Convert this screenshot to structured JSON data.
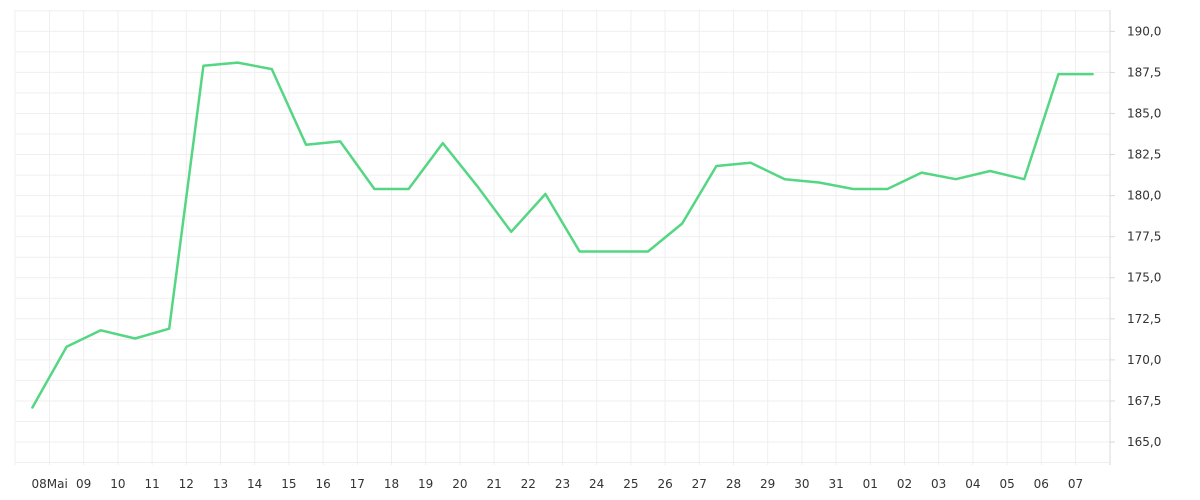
{
  "chart_data": {
    "type": "line",
    "title": "",
    "xlabel": "",
    "ylabel": "",
    "x_tick_labels": [
      "08Mai",
      "09",
      "10",
      "11",
      "12",
      "13",
      "14",
      "15",
      "16",
      "17",
      "18",
      "19",
      "20",
      "21",
      "22",
      "23",
      "24",
      "25",
      "26",
      "27",
      "28",
      "29",
      "30",
      "31",
      "01",
      "02",
      "03",
      "04",
      "05",
      "06",
      "07"
    ],
    "y_ticks": [
      165.0,
      167.5,
      170.0,
      172.5,
      175.0,
      177.5,
      180.0,
      182.5,
      185.0,
      187.5,
      190.0
    ],
    "y_tick_labels": [
      "165,0",
      "167,5",
      "170,0",
      "172,5",
      "175,0",
      "177,5",
      "180,0",
      "182,5",
      "185,0",
      "187,5",
      "190,0"
    ],
    "ylim": [
      163.6,
      191.3
    ],
    "grid": true,
    "legend": "none",
    "color": "#54d683",
    "series": [
      {
        "values": [
          167.1,
          170.8,
          171.8,
          171.3,
          171.9,
          187.9,
          188.1,
          187.7,
          183.1,
          183.3,
          180.4,
          180.4,
          183.2,
          180.6,
          177.8,
          180.1,
          176.6,
          176.6,
          176.6,
          178.3,
          181.8,
          182.0,
          181.0,
          180.8,
          180.4,
          180.4,
          181.4,
          181.0,
          181.5,
          181.0,
          187.4,
          187.4
        ]
      }
    ]
  }
}
